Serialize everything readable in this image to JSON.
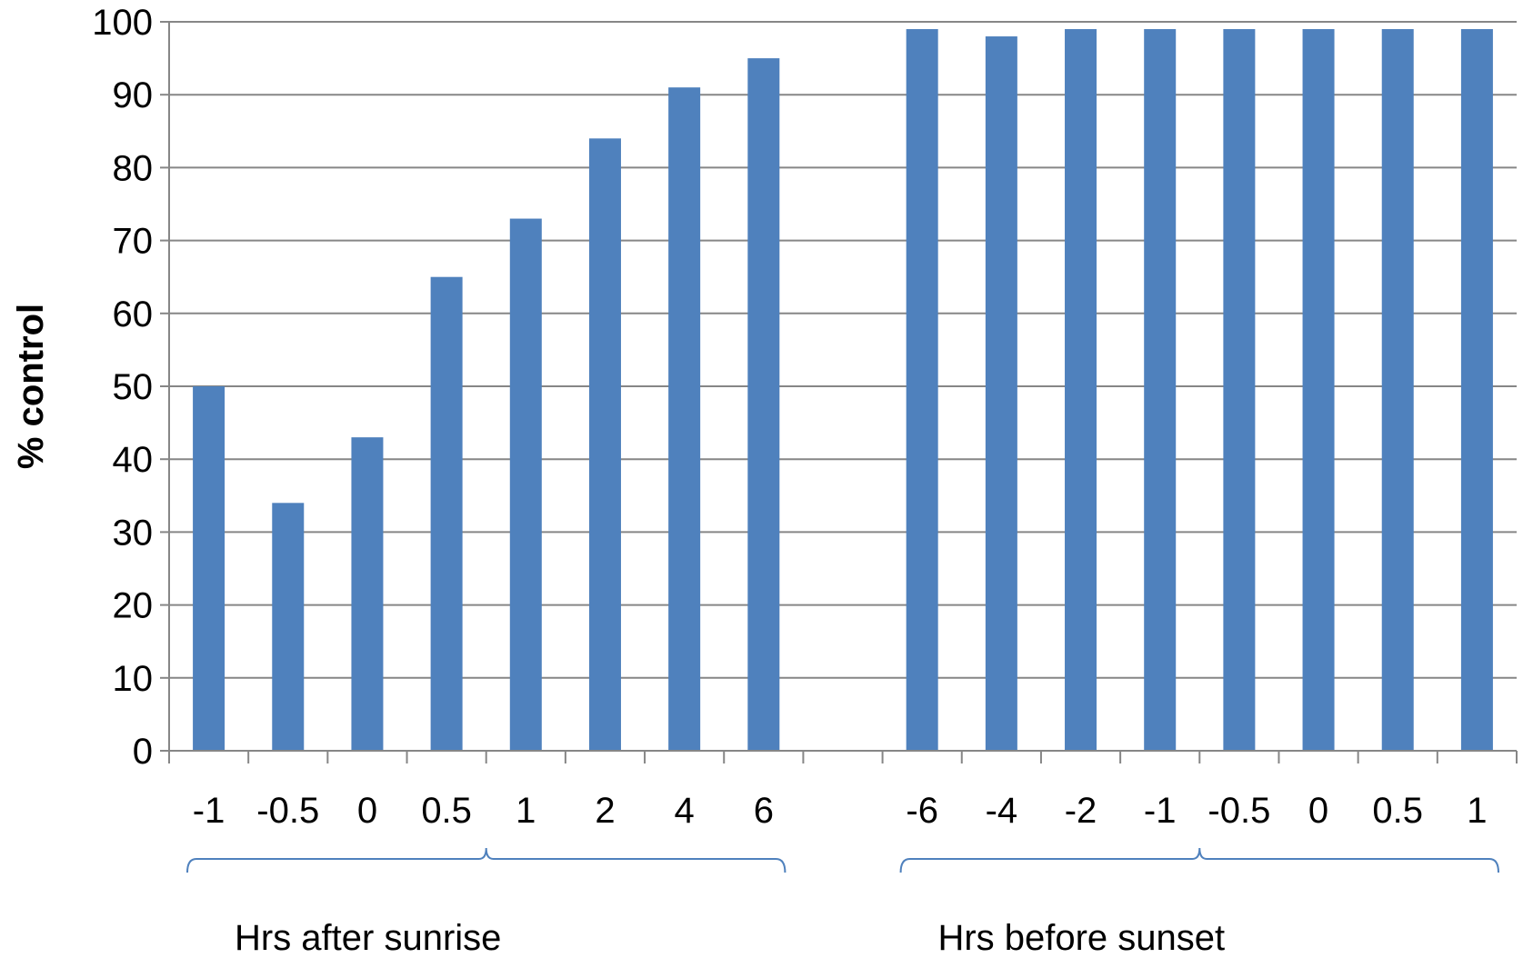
{
  "chart_data": {
    "type": "bar",
    "categories": [
      "-1",
      "-0.5",
      "0",
      "0.5",
      "1",
      "2",
      "4",
      "6",
      "",
      "-6",
      "-4",
      "-2",
      "-1",
      "-0.5",
      "0",
      "0.5",
      "1"
    ],
    "values": [
      50,
      34,
      43,
      65,
      73,
      84,
      91,
      95,
      null,
      99,
      98,
      99,
      99,
      99,
      99,
      99,
      99
    ],
    "title": "",
    "xlabel": "",
    "ylabel": "% control",
    "ylim": [
      0,
      100
    ],
    "yticks": [
      0,
      10,
      20,
      30,
      40,
      50,
      60,
      70,
      80,
      90,
      100
    ],
    "grid": true,
    "legend": "none",
    "colors": {
      "bar": "#4f81bd",
      "grid": "#868686",
      "axis": "#868686",
      "brace": "#4f81bd"
    },
    "groups": [
      {
        "label": "Hrs after sunrise",
        "from": 0,
        "to": 7
      },
      {
        "label": "Hrs before sunset",
        "from": 9,
        "to": 16
      }
    ]
  }
}
